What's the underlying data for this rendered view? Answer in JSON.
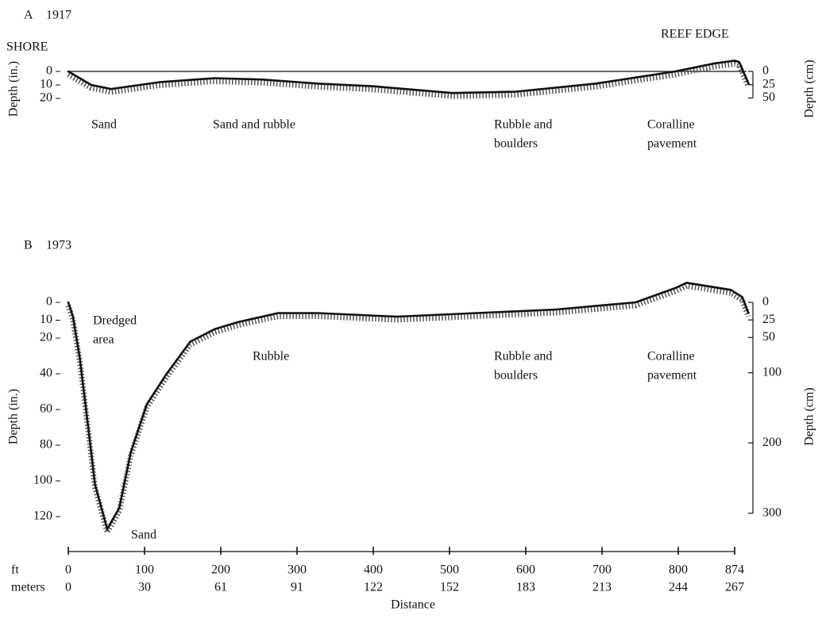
{
  "chart_data": [
    {
      "type": "line",
      "panel": "A",
      "year": "1917",
      "edge_labels": [
        "SHORE",
        "REEF EDGE"
      ],
      "ylabel": "Depth (in.)",
      "y2label": "Depth (cm)",
      "x": [
        0,
        30,
        56,
        119,
        192,
        254,
        327,
        400,
        504,
        587,
        692,
        796,
        848,
        874,
        880,
        892
      ],
      "values": [
        0,
        10,
        13,
        8,
        5,
        6,
        9,
        11,
        16,
        15,
        9,
        0,
        -6,
        -8,
        -7,
        9
      ],
      "color": "#111111",
      "xlim": [
        0,
        900
      ],
      "ylim": [
        -10,
        20
      ],
      "yticks": [
        0,
        10,
        20
      ],
      "y2lim": [
        -25.4,
        50.8
      ],
      "y2ticks": [
        0,
        25,
        50
      ],
      "zero_line": true,
      "annotations": [
        {
          "lines": [
            "Sand"
          ]
        },
        {
          "lines": [
            "Sand and rubble"
          ]
        },
        {
          "lines": [
            "Rubble and",
            "boulders"
          ]
        },
        {
          "lines": [
            "Coralline",
            "pavement"
          ]
        }
      ]
    },
    {
      "type": "line",
      "panel": "B",
      "year": "1973",
      "ylabel": "Depth (in.)",
      "y2label": "Depth (cm)",
      "xlabel": "Distance",
      "x_unit": "ft",
      "x2_unit": "meters",
      "x": [
        0,
        6,
        15,
        25,
        35,
        51,
        67,
        82,
        103,
        129,
        160,
        192,
        223,
        275,
        327,
        431,
        535,
        640,
        744,
        796,
        811,
        869,
        884,
        892
      ],
      "values": [
        0,
        8,
        31,
        66,
        102,
        127,
        115,
        84,
        57,
        40,
        22,
        15,
        11,
        6,
        6,
        8,
        6,
        4,
        0,
        -8,
        -11,
        -7,
        -3,
        6
      ],
      "color": "#111111",
      "xlim": [
        0,
        900
      ],
      "xticks": [
        0,
        100,
        200,
        300,
        400,
        500,
        600,
        700,
        800,
        874
      ],
      "x2ticks": [
        0,
        30,
        61,
        91,
        122,
        152,
        183,
        213,
        244,
        267
      ],
      "ylim": [
        -15,
        130
      ],
      "yticks": [
        0,
        10,
        20,
        40,
        60,
        80,
        100,
        120
      ],
      "y2lim": [
        -38.1,
        330.2
      ],
      "y2ticks": [
        0,
        25,
        50,
        100,
        200,
        300
      ],
      "zero_line": false,
      "annotations": [
        {
          "lines": [
            "Dredged",
            "area"
          ]
        },
        {
          "lines": [
            "Rubble"
          ]
        },
        {
          "lines": [
            "Rubble and",
            "boulders"
          ]
        },
        {
          "lines": [
            "Coralline",
            "pavement"
          ]
        },
        {
          "lines": [
            "Sand"
          ]
        }
      ]
    }
  ]
}
